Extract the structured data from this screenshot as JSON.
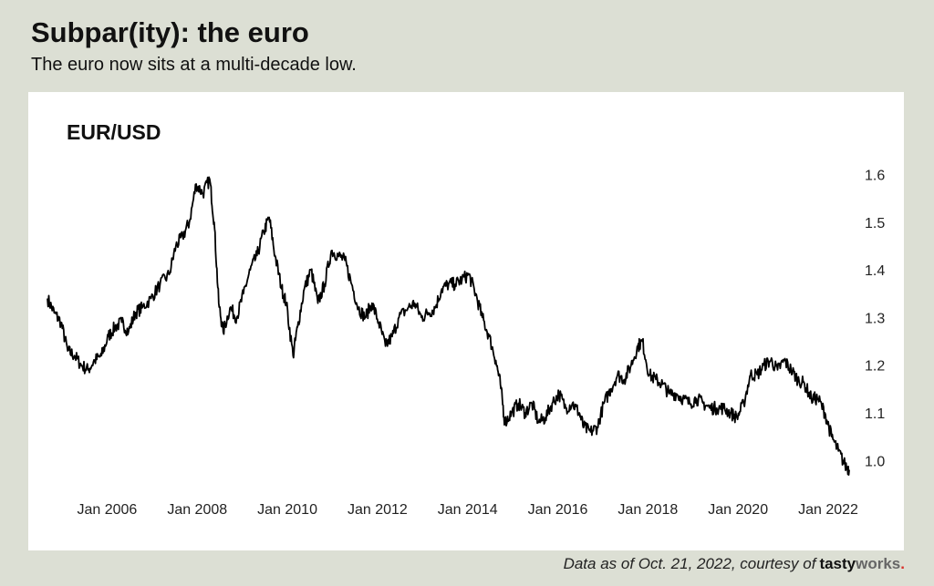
{
  "header": {
    "title": "Subpar(ity): the euro",
    "subtitle": "The euro now sits at a multi-decade low."
  },
  "footer": {
    "note": "Data as of Oct. 21, 2022, courtesy of",
    "brand_part1": "tasty",
    "brand_part2": "works",
    "brand_dot": "."
  },
  "chart_data": {
    "type": "line",
    "title": "EUR/USD",
    "xlabel": "",
    "ylabel": "",
    "ylim": [
      0.97,
      1.62
    ],
    "xlim": [
      2005.0,
      2022.85
    ],
    "x_tick_labels": [
      "Jan 2006",
      "Jan 2008",
      "Jan 2010",
      "Jan 2012",
      "Jan 2014",
      "Jan 2016",
      "Jan 2018",
      "Jan 2020",
      "Jan 2022"
    ],
    "x_tick_values": [
      2006,
      2008,
      2010,
      2012,
      2014,
      2016,
      2018,
      2020,
      2022
    ],
    "y_tick_labels": [
      "1.0",
      "1.1",
      "1.2",
      "1.3",
      "1.4",
      "1.5",
      "1.6"
    ],
    "y_tick_values": [
      1.0,
      1.1,
      1.2,
      1.3,
      1.4,
      1.5,
      1.6
    ],
    "y_axis_side": "right",
    "grid": false,
    "line_color": "#000000",
    "series": [
      {
        "points": [
          [
            2005.0,
            1.34
          ],
          [
            2005.15,
            1.31
          ],
          [
            2005.3,
            1.29
          ],
          [
            2005.45,
            1.23
          ],
          [
            2005.6,
            1.22
          ],
          [
            2005.75,
            1.2
          ],
          [
            2005.9,
            1.19
          ],
          [
            2006.05,
            1.21
          ],
          [
            2006.2,
            1.22
          ],
          [
            2006.35,
            1.26
          ],
          [
            2006.5,
            1.28
          ],
          [
            2006.65,
            1.29
          ],
          [
            2006.8,
            1.27
          ],
          [
            2006.95,
            1.31
          ],
          [
            2007.1,
            1.32
          ],
          [
            2007.3,
            1.34
          ],
          [
            2007.5,
            1.37
          ],
          [
            2007.7,
            1.39
          ],
          [
            2007.85,
            1.45
          ],
          [
            2008.0,
            1.47
          ],
          [
            2008.15,
            1.5
          ],
          [
            2008.3,
            1.58
          ],
          [
            2008.45,
            1.56
          ],
          [
            2008.6,
            1.59
          ],
          [
            2008.7,
            1.5
          ],
          [
            2008.8,
            1.33
          ],
          [
            2008.9,
            1.27
          ],
          [
            2009.05,
            1.32
          ],
          [
            2009.2,
            1.3
          ],
          [
            2009.35,
            1.35
          ],
          [
            2009.5,
            1.4
          ],
          [
            2009.65,
            1.43
          ],
          [
            2009.8,
            1.48
          ],
          [
            2009.92,
            1.51
          ],
          [
            2010.05,
            1.43
          ],
          [
            2010.2,
            1.36
          ],
          [
            2010.3,
            1.33
          ],
          [
            2010.45,
            1.22
          ],
          [
            2010.55,
            1.28
          ],
          [
            2010.7,
            1.36
          ],
          [
            2010.85,
            1.4
          ],
          [
            2011.0,
            1.33
          ],
          [
            2011.15,
            1.37
          ],
          [
            2011.3,
            1.44
          ],
          [
            2011.45,
            1.43
          ],
          [
            2011.6,
            1.42
          ],
          [
            2011.75,
            1.37
          ],
          [
            2011.9,
            1.32
          ],
          [
            2012.05,
            1.3
          ],
          [
            2012.2,
            1.33
          ],
          [
            2012.35,
            1.29
          ],
          [
            2012.5,
            1.24
          ],
          [
            2012.65,
            1.26
          ],
          [
            2012.8,
            1.3
          ],
          [
            2013.0,
            1.32
          ],
          [
            2013.15,
            1.33
          ],
          [
            2013.3,
            1.3
          ],
          [
            2013.45,
            1.31
          ],
          [
            2013.6,
            1.32
          ],
          [
            2013.75,
            1.36
          ],
          [
            2013.9,
            1.37
          ],
          [
            2014.05,
            1.37
          ],
          [
            2014.2,
            1.38
          ],
          [
            2014.35,
            1.39
          ],
          [
            2014.5,
            1.35
          ],
          [
            2014.65,
            1.3
          ],
          [
            2014.8,
            1.26
          ],
          [
            2014.95,
            1.21
          ],
          [
            2015.05,
            1.16
          ],
          [
            2015.15,
            1.08
          ],
          [
            2015.3,
            1.1
          ],
          [
            2015.45,
            1.12
          ],
          [
            2015.6,
            1.1
          ],
          [
            2015.75,
            1.12
          ],
          [
            2015.9,
            1.08
          ],
          [
            2016.05,
            1.09
          ],
          [
            2016.2,
            1.12
          ],
          [
            2016.35,
            1.14
          ],
          [
            2016.5,
            1.11
          ],
          [
            2016.65,
            1.12
          ],
          [
            2016.8,
            1.1
          ],
          [
            2016.9,
            1.07
          ],
          [
            2017.05,
            1.06
          ],
          [
            2017.2,
            1.07
          ],
          [
            2017.35,
            1.12
          ],
          [
            2017.5,
            1.15
          ],
          [
            2017.65,
            1.18
          ],
          [
            2017.8,
            1.17
          ],
          [
            2017.95,
            1.2
          ],
          [
            2018.1,
            1.24
          ],
          [
            2018.2,
            1.25
          ],
          [
            2018.35,
            1.18
          ],
          [
            2018.5,
            1.17
          ],
          [
            2018.65,
            1.16
          ],
          [
            2018.8,
            1.14
          ],
          [
            2018.95,
            1.14
          ],
          [
            2019.1,
            1.13
          ],
          [
            2019.25,
            1.12
          ],
          [
            2019.4,
            1.13
          ],
          [
            2019.55,
            1.12
          ],
          [
            2019.7,
            1.11
          ],
          [
            2019.85,
            1.11
          ],
          [
            2020.0,
            1.11
          ],
          [
            2020.15,
            1.1
          ],
          [
            2020.3,
            1.09
          ],
          [
            2020.45,
            1.12
          ],
          [
            2020.6,
            1.18
          ],
          [
            2020.75,
            1.18
          ],
          [
            2020.9,
            1.2
          ],
          [
            2021.05,
            1.21
          ],
          [
            2021.2,
            1.19
          ],
          [
            2021.35,
            1.21
          ],
          [
            2021.5,
            1.19
          ],
          [
            2021.65,
            1.17
          ],
          [
            2021.8,
            1.16
          ],
          [
            2021.95,
            1.13
          ],
          [
            2022.1,
            1.13
          ],
          [
            2022.25,
            1.1
          ],
          [
            2022.4,
            1.05
          ],
          [
            2022.55,
            1.02
          ],
          [
            2022.7,
            0.99
          ],
          [
            2022.8,
            0.98
          ]
        ]
      }
    ]
  }
}
